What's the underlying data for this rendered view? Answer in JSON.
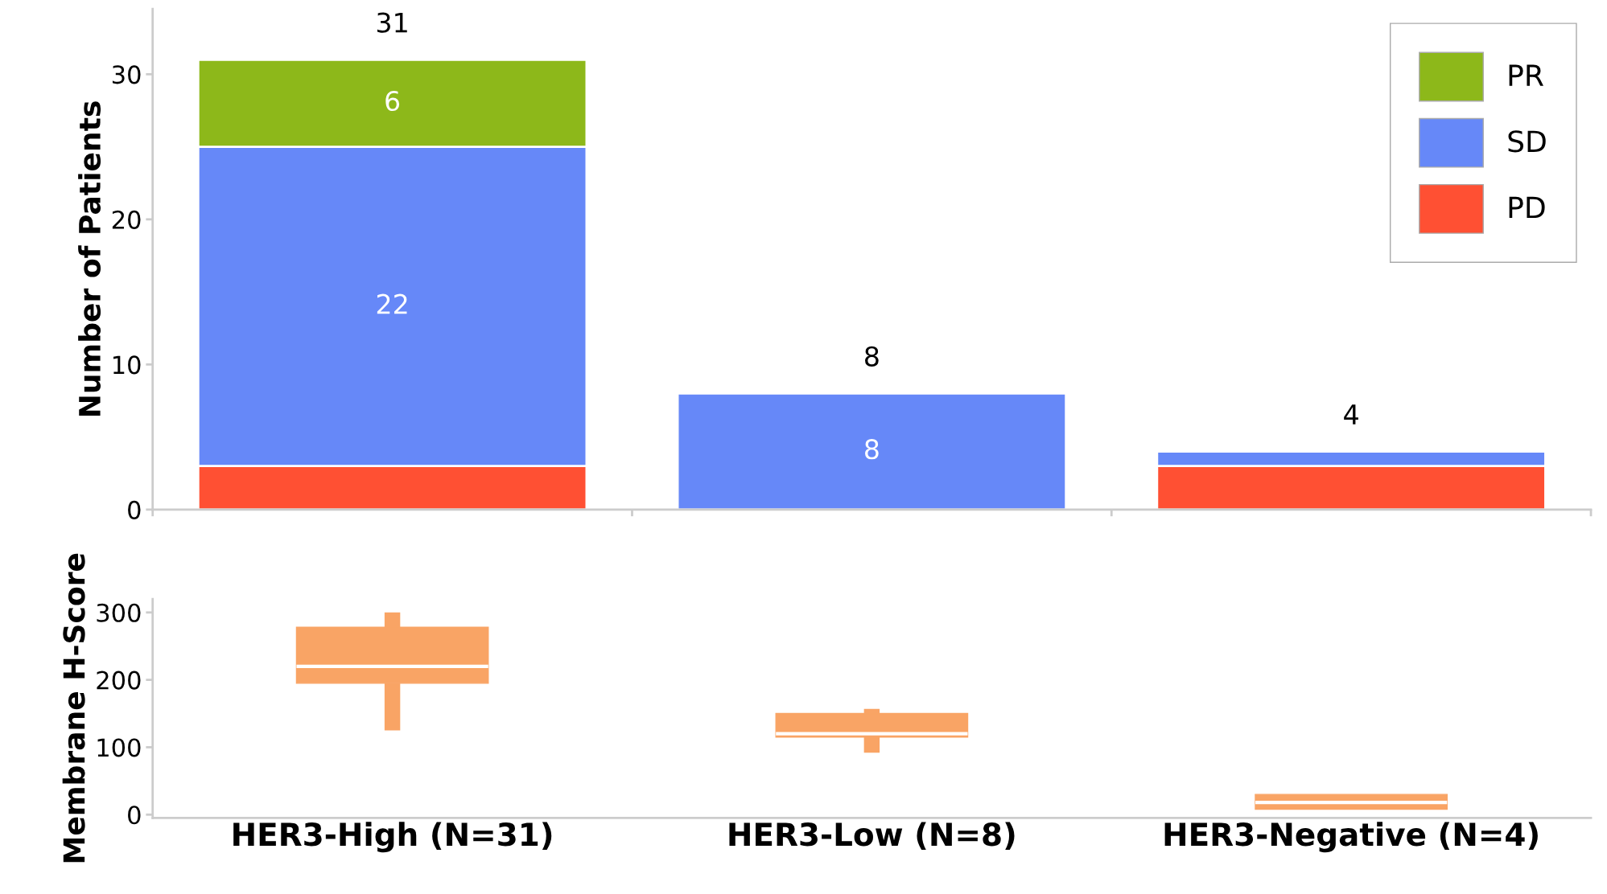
{
  "chart_data": [
    {
      "type": "bar",
      "stacked": true,
      "ylabel": "Number of Patients",
      "categories": [
        null,
        null,
        null
      ],
      "tick_labels": "y",
      "ylim": [
        0,
        34.5
      ],
      "yticks": [
        0,
        10,
        20,
        30
      ],
      "legend": "top right",
      "grid": false,
      "series": [
        {
          "name": "PD",
          "color": "#ff5033",
          "values": [
            3,
            null,
            3
          ],
          "value_labels": [
            null,
            null,
            null
          ]
        },
        {
          "name": "SD",
          "color": "#6688f8",
          "values": [
            22,
            8,
            1
          ],
          "value_labels": [
            "22",
            "8",
            null
          ]
        },
        {
          "name": "PR",
          "color": "#8db81a",
          "values": [
            6,
            null,
            null
          ],
          "value_labels": [
            "6",
            null,
            null
          ]
        }
      ],
      "totals": [
        "31",
        "8",
        "4"
      ]
    },
    {
      "type": "box",
      "ylabel": "Membrane H-Score",
      "categories": [
        "HER3-High (N=31)",
        "HER3-Low (N=8)",
        "HER3-Negative (N=4)"
      ],
      "ylim": [
        -5,
        320
      ],
      "yticks": [
        0,
        100,
        200,
        300
      ],
      "grid": false,
      "color": "#f9a465",
      "boxes": [
        {
          "low": 125,
          "q1": 195,
          "median": 220,
          "q3": 278,
          "high": 300
        },
        {
          "low": 92,
          "q1": 115,
          "median": 120,
          "q3": 150,
          "high": 157
        },
        {
          "low": 8,
          "q1": 8,
          "median": 18,
          "q3": 30,
          "high": 30
        }
      ]
    }
  ]
}
